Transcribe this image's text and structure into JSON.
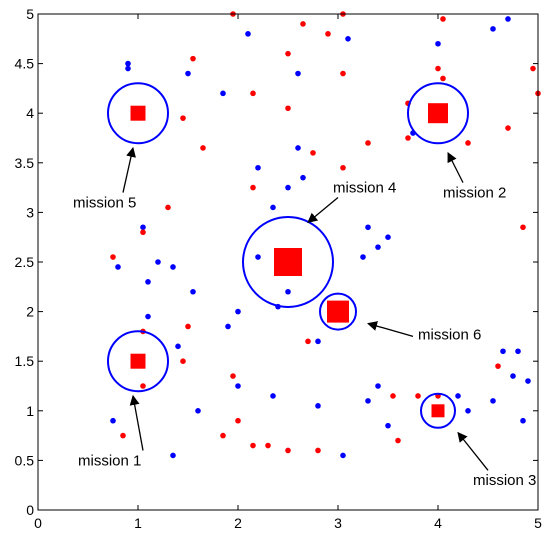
{
  "chart_data": {
    "type": "scatter",
    "xlim": [
      0,
      5
    ],
    "ylim": [
      0,
      5
    ],
    "x_ticks": [
      "0",
      "1",
      "2",
      "3",
      "4",
      "5"
    ],
    "y_ticks": [
      "0",
      "0.5",
      "1",
      "1.5",
      "2",
      "2.5",
      "3",
      "3.5",
      "4",
      "4.5",
      "5"
    ],
    "y_tick_values": [
      0,
      0.5,
      1,
      1.5,
      2,
      2.5,
      3,
      3.5,
      4,
      4.5,
      5
    ],
    "grid": false,
    "colors": {
      "series_a": "#0000ff",
      "series_b": "#ff0000",
      "mission_marker": "#ff0000",
      "mission_circle": "#0000ff",
      "axis": "#000000"
    },
    "series": [
      {
        "color": "#0000ff",
        "points": [
          [
            0.9,
            4.5
          ],
          [
            0.9,
            4.45
          ],
          [
            1.5,
            4.4
          ],
          [
            1.85,
            4.2
          ],
          [
            2.1,
            4.8
          ],
          [
            2.6,
            4.4
          ],
          [
            3.1,
            4.75
          ],
          [
            4.0,
            4.7
          ],
          [
            4.55,
            4.85
          ],
          [
            4.7,
            4.95
          ],
          [
            3.75,
            3.8
          ],
          [
            2.6,
            3.65
          ],
          [
            2.65,
            3.35
          ],
          [
            2.2,
            3.45
          ],
          [
            2.5,
            3.25
          ],
          [
            2.35,
            3.05
          ],
          [
            1.05,
            2.85
          ],
          [
            1.2,
            2.5
          ],
          [
            0.8,
            2.45
          ],
          [
            1.35,
            2.45
          ],
          [
            1.1,
            2.3
          ],
          [
            2.0,
            2.0
          ],
          [
            1.9,
            1.85
          ],
          [
            2.2,
            2.55
          ],
          [
            2.4,
            2.05
          ],
          [
            2.5,
            2.2
          ],
          [
            2.8,
            1.7
          ],
          [
            3.3,
            2.85
          ],
          [
            3.4,
            2.65
          ],
          [
            3.5,
            2.75
          ],
          [
            3.25,
            2.55
          ],
          [
            1.1,
            1.95
          ],
          [
            1.55,
            2.2
          ],
          [
            1.4,
            1.65
          ],
          [
            2.0,
            1.25
          ],
          [
            1.6,
            1.0
          ],
          [
            1.35,
            0.55
          ],
          [
            0.75,
            0.9
          ],
          [
            2.35,
            1.15
          ],
          [
            2.8,
            1.05
          ],
          [
            3.05,
            0.55
          ],
          [
            3.3,
            1.1
          ],
          [
            3.4,
            1.25
          ],
          [
            3.5,
            0.85
          ],
          [
            4.2,
            1.15
          ],
          [
            4.55,
            1.1
          ],
          [
            4.65,
            1.6
          ],
          [
            4.75,
            1.35
          ],
          [
            4.8,
            1.6
          ],
          [
            4.9,
            1.3
          ],
          [
            4.85,
            0.9
          ],
          [
            4.3,
            1.0
          ]
        ]
      },
      {
        "color": "#ff0000",
        "points": [
          [
            1.95,
            5.0
          ],
          [
            2.65,
            4.9
          ],
          [
            2.9,
            4.8
          ],
          [
            3.05,
            5.0
          ],
          [
            4.05,
            4.95
          ],
          [
            2.5,
            4.6
          ],
          [
            1.55,
            4.55
          ],
          [
            2.15,
            4.2
          ],
          [
            2.5,
            4.05
          ],
          [
            3.05,
            4.4
          ],
          [
            4.0,
            4.45
          ],
          [
            4.05,
            4.35
          ],
          [
            4.95,
            4.45
          ],
          [
            5.0,
            4.2
          ],
          [
            3.7,
            4.1
          ],
          [
            1.45,
            3.95
          ],
          [
            1.65,
            3.65
          ],
          [
            3.3,
            3.7
          ],
          [
            3.7,
            3.75
          ],
          [
            4.3,
            3.7
          ],
          [
            4.7,
            3.85
          ],
          [
            2.75,
            3.6
          ],
          [
            3.05,
            3.45
          ],
          [
            2.15,
            3.25
          ],
          [
            1.3,
            3.05
          ],
          [
            1.05,
            2.8
          ],
          [
            0.75,
            2.55
          ],
          [
            4.85,
            2.85
          ],
          [
            1.05,
            1.8
          ],
          [
            1.5,
            1.85
          ],
          [
            2.7,
            1.7
          ],
          [
            1.45,
            1.5
          ],
          [
            1.95,
            1.35
          ],
          [
            3.55,
            1.15
          ],
          [
            3.8,
            1.15
          ],
          [
            4.6,
            1.45
          ],
          [
            2.0,
            0.9
          ],
          [
            1.85,
            0.75
          ],
          [
            0.85,
            0.75
          ],
          [
            2.15,
            0.65
          ],
          [
            2.3,
            0.65
          ],
          [
            2.5,
            0.6
          ],
          [
            2.8,
            0.6
          ],
          [
            3.6,
            0.7
          ],
          [
            4.0,
            1.15
          ],
          [
            1.05,
            1.25
          ]
        ]
      }
    ],
    "missions": [
      {
        "label": "mission 1",
        "x": 1.0,
        "y": 1.5,
        "radius": 0.3,
        "size": 0.15,
        "text_x": 0.4,
        "text_y": 0.45,
        "arrow_tip": [
          0.95,
          1.15
        ],
        "arrow_tail": [
          1.05,
          0.6
        ]
      },
      {
        "label": "mission 2",
        "x": 4.0,
        "y": 4.0,
        "radius": 0.3,
        "size": 0.2,
        "text_x": 4.05,
        "text_y": 3.15,
        "arrow_tip": [
          4.1,
          3.6
        ],
        "arrow_tail": [
          4.25,
          3.3
        ]
      },
      {
        "label": "mission 3",
        "x": 4.0,
        "y": 1.0,
        "radius": 0.17,
        "size": 0.13,
        "text_x": 4.35,
        "text_y": 0.25,
        "arrow_tip": [
          4.2,
          0.78
        ],
        "arrow_tail": [
          4.5,
          0.4
        ]
      },
      {
        "label": "mission 4",
        "x": 2.5,
        "y": 2.5,
        "radius": 0.45,
        "size": 0.28,
        "text_x": 2.95,
        "text_y": 3.2,
        "arrow_tip": [
          2.7,
          2.9
        ],
        "arrow_tail": [
          3.0,
          3.15
        ]
      },
      {
        "label": "mission 5",
        "x": 1.0,
        "y": 4.0,
        "radius": 0.3,
        "size": 0.15,
        "text_x": 0.35,
        "text_y": 3.05,
        "arrow_tip": [
          0.95,
          3.65
        ],
        "arrow_tail": [
          0.85,
          3.2
        ]
      },
      {
        "label": "mission 6",
        "x": 3.0,
        "y": 2.0,
        "radius": 0.18,
        "size": 0.22,
        "text_x": 3.8,
        "text_y": 1.72,
        "arrow_tip": [
          3.3,
          1.88
        ],
        "arrow_tail": [
          3.75,
          1.75
        ]
      }
    ]
  }
}
